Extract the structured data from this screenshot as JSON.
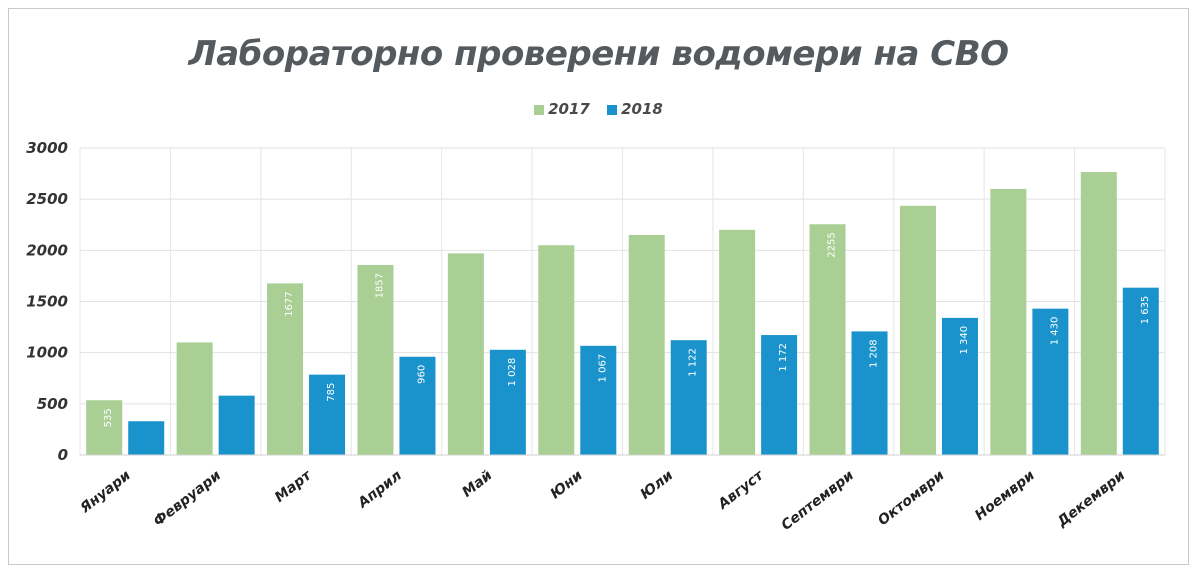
{
  "chart_data": {
    "type": "bar",
    "title": "Лабораторно проверени водомери на СВО",
    "categories": [
      "Януари",
      "Февруари",
      "Март",
      "Април",
      "Май",
      "Юни",
      "Юли",
      "Август",
      "Септември",
      "Октомври",
      "Ноември",
      "Декември"
    ],
    "series": [
      {
        "name": "2017",
        "values": [
          535,
          1100,
          1677,
          1857,
          1970,
          2050,
          2150,
          2200,
          2255,
          2435,
          2600,
          2765
        ],
        "labels": [
          "535",
          "",
          "1677",
          "1857",
          "",
          "",
          "",
          "",
          "2255",
          "",
          "",
          ""
        ],
        "color": "#a9cf95"
      },
      {
        "name": "2018",
        "values": [
          330,
          580,
          785,
          960,
          1028,
          1067,
          1122,
          1172,
          1208,
          1340,
          1430,
          1635
        ],
        "labels": [
          "",
          "",
          "785",
          "960",
          "1 028",
          "1 067",
          "1 122",
          "1 172",
          "1 208",
          "1 340",
          "1 430",
          "1 635"
        ],
        "color": "#1a93cc"
      }
    ],
    "ylim": [
      0,
      3000
    ],
    "yticks": [
      "0",
      "500",
      "1000",
      "1500",
      "2000",
      "2500",
      "3000"
    ],
    "grid": true,
    "legend_position": "top"
  }
}
